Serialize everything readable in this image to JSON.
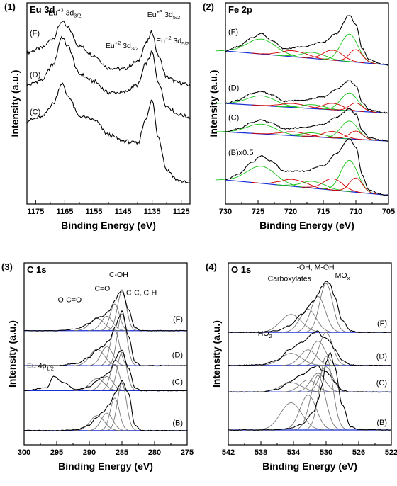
{
  "figure": {
    "panels": [
      {
        "number": "(1)",
        "title": "Eu 3d",
        "xlabel": "Binding Energy (eV)",
        "ylabel": "Intensity (a.u.)",
        "xticks": [
          "1175",
          "1165",
          "1155",
          "1145",
          "1135",
          "1125"
        ],
        "traces": [
          "(F)",
          "(D)",
          "(C)"
        ],
        "annotations": [
          {
            "base": "Eu",
            "sup": "+3",
            "rest": " 3d",
            "sub": "3/2"
          },
          {
            "base": "Eu",
            "sup": "+2",
            "rest": " 3d",
            "sub": "3/2"
          },
          {
            "base": "Eu",
            "sup": "+3",
            "rest": " 3d",
            "sub": "5/2"
          },
          {
            "base": "Eu",
            "sup": "+2",
            "rest": " 3d",
            "sub": "5/2"
          }
        ]
      },
      {
        "number": "(2)",
        "title": "Fe 2p",
        "xlabel": "Binding Energy (eV)",
        "ylabel": "Intensity (a.u.)",
        "xticks": [
          "730",
          "725",
          "720",
          "715",
          "710",
          "705"
        ],
        "traces": [
          "(F)",
          "(D)",
          "(C)",
          "(B)x0.5"
        ],
        "annotations": []
      },
      {
        "number": "(3)",
        "title": "C 1s",
        "xlabel": "Binding Energy (eV)",
        "ylabel": "Intensity (a.u.)",
        "xticks": [
          "300",
          "295",
          "290",
          "285",
          "280",
          "275"
        ],
        "traces": [
          "(F)",
          "(D)",
          "(C)",
          "(B)"
        ],
        "annotations": [
          {
            "text": "O-C=O"
          },
          {
            "text": "C=O"
          },
          {
            "text": "C-OH"
          },
          {
            "text": "C-C, C-H"
          },
          {
            "base": "Eu 4p",
            "sup": "",
            "rest": "",
            "sub": "1/2"
          }
        ]
      },
      {
        "number": "(4)",
        "title": "O 1s",
        "xlabel": "Binding Energy (eV)",
        "ylabel": "Intensity (a.u.)",
        "xticks": [
          "542",
          "538",
          "534",
          "530",
          "526",
          "522"
        ],
        "traces": [
          "(F)",
          "(D)",
          "(C)",
          "(B)"
        ],
        "annotations": [
          {
            "text": "Carboxylates"
          },
          {
            "text": "-OH, M-OH"
          },
          {
            "base": "MO",
            "sup": "",
            "rest": "",
            "sub": "x"
          },
          {
            "base": "H",
            "sup": "",
            "rest": "O",
            "sub": "2"
          }
        ]
      }
    ]
  },
  "chart_data": [
    {
      "type": "line",
      "title": "Eu 3d",
      "xlabel": "Binding Energy (eV)",
      "ylabel": "Intensity (a.u.)",
      "xlim": [
        1178,
        1122
      ],
      "xdir": "reversed",
      "series": [
        {
          "name": "(F)",
          "x": [
            1178,
            1173,
            1169,
            1166,
            1164,
            1160,
            1155,
            1150,
            1145,
            1140,
            1137,
            1135,
            1133,
            1130,
            1126,
            1122
          ],
          "y": [
            2.45,
            2.52,
            2.68,
            2.95,
            2.85,
            2.55,
            2.4,
            2.2,
            2.18,
            2.3,
            2.6,
            2.78,
            2.4,
            2.05,
            1.96,
            1.92
          ]
        },
        {
          "name": "(D)",
          "x": [
            1178,
            1173,
            1169,
            1166,
            1164,
            1160,
            1155,
            1150,
            1145,
            1140,
            1137,
            1135,
            1133,
            1130,
            1126,
            1122
          ],
          "y": [
            1.92,
            2.0,
            2.25,
            2.7,
            2.55,
            2.1,
            1.98,
            1.8,
            1.8,
            1.92,
            2.28,
            2.45,
            1.98,
            1.58,
            1.45,
            1.4
          ]
        },
        {
          "name": "(C)",
          "x": [
            1178,
            1173,
            1169,
            1166,
            1164,
            1160,
            1155,
            1150,
            1145,
            1140,
            1137,
            1135,
            1133,
            1130,
            1126,
            1122
          ],
          "y": [
            1.35,
            1.4,
            1.62,
            1.95,
            1.75,
            1.42,
            1.36,
            1.12,
            1.02,
            0.98,
            1.4,
            1.68,
            1.1,
            0.55,
            0.38,
            0.33
          ]
        }
      ]
    },
    {
      "type": "line",
      "title": "Fe 2p",
      "xlabel": "Binding Energy (eV)",
      "ylabel": "Intensity (a.u.)",
      "xlim": [
        730,
        705
      ],
      "xdir": "reversed",
      "series": [
        {
          "name": "(F)",
          "x": [
            730,
            728,
            726,
            724.5,
            723,
            721,
            718,
            715,
            713,
            711,
            710,
            709,
            708,
            706,
            705
          ],
          "y": [
            3.3,
            3.4,
            3.6,
            3.7,
            3.55,
            3.35,
            3.4,
            3.5,
            3.7,
            4.12,
            3.9,
            3.35,
            3.1,
            3.0,
            2.98
          ]
        },
        {
          "name": "(D)",
          "x": [
            730,
            728,
            726,
            724.5,
            723,
            721,
            718,
            715,
            713,
            711,
            710,
            709,
            708,
            706,
            705
          ],
          "y": [
            2.1,
            2.18,
            2.32,
            2.38,
            2.3,
            2.15,
            2.18,
            2.25,
            2.42,
            2.62,
            2.5,
            2.12,
            1.96,
            1.9,
            1.88
          ]
        },
        {
          "name": "(C)",
          "x": [
            730,
            728,
            726,
            724.5,
            723,
            721,
            718,
            715,
            713,
            711,
            710,
            709,
            708,
            706,
            705
          ],
          "y": [
            1.45,
            1.52,
            1.66,
            1.72,
            1.65,
            1.52,
            1.55,
            1.62,
            1.78,
            1.98,
            1.85,
            1.48,
            1.32,
            1.26,
            1.24
          ]
        },
        {
          "name": "(B)x0.5",
          "x": [
            730,
            728,
            726,
            724.5,
            723,
            721,
            718,
            715,
            713,
            711,
            710,
            709,
            708,
            706,
            705
          ],
          "y": [
            0.35,
            0.48,
            0.75,
            0.9,
            0.78,
            0.55,
            0.55,
            0.68,
            0.95,
            1.3,
            1.1,
            0.45,
            0.12,
            0.02,
            0.0
          ]
        }
      ]
    },
    {
      "type": "line",
      "title": "C 1s",
      "xlabel": "Binding Energy (eV)",
      "ylabel": "Intensity (a.u.)",
      "xlim": [
        300,
        275
      ],
      "xdir": "reversed",
      "series": [
        {
          "name": "(F)",
          "x": [
            300,
            295,
            292,
            290,
            289,
            288,
            287,
            286,
            285.5,
            285,
            284,
            283,
            282,
            278,
            275
          ],
          "y": [
            3.0,
            3.0,
            3.05,
            3.2,
            3.35,
            3.4,
            3.55,
            3.85,
            4.05,
            4.15,
            3.6,
            3.08,
            3.0,
            3.0,
            3.0
          ]
        },
        {
          "name": "(D)",
          "x": [
            300,
            295,
            292,
            290,
            289,
            288,
            287,
            286,
            285.5,
            285,
            284,
            283,
            282,
            278,
            275
          ],
          "y": [
            2.02,
            2.02,
            2.08,
            2.25,
            2.45,
            2.55,
            2.72,
            3.1,
            3.35,
            3.55,
            2.85,
            2.12,
            2.02,
            2.02,
            2.02
          ]
        },
        {
          "name": "(C)",
          "x": [
            300,
            296.5,
            295.5,
            294,
            292,
            290,
            289,
            288,
            287,
            286,
            285.5,
            285,
            284,
            283,
            282,
            278,
            275
          ],
          "y": [
            1.32,
            1.4,
            1.72,
            1.55,
            1.35,
            1.42,
            1.58,
            1.7,
            1.82,
            2.18,
            2.4,
            2.45,
            1.95,
            1.4,
            1.32,
            1.32,
            1.32
          ]
        },
        {
          "name": "(B)",
          "x": [
            300,
            295,
            292,
            290,
            289,
            288,
            287,
            286,
            285.5,
            285,
            284,
            283,
            282,
            278,
            275
          ],
          "y": [
            0.2,
            0.2,
            0.22,
            0.35,
            0.55,
            0.7,
            0.92,
            1.25,
            1.45,
            1.6,
            1.25,
            0.35,
            0.2,
            0.2,
            0.2
          ]
        }
      ]
    },
    {
      "type": "line",
      "title": "O 1s",
      "xlabel": "Binding Energy (eV)",
      "ylabel": "Intensity (a.u.)",
      "xlim": [
        542,
        522
      ],
      "xdir": "reversed",
      "series": [
        {
          "name": "(F)",
          "x": [
            542,
            538,
            536,
            534.5,
            533,
            531.5,
            531,
            530.5,
            530,
            529.5,
            529,
            528,
            527,
            526,
            522
          ],
          "y": [
            3.0,
            3.0,
            3.05,
            3.2,
            3.55,
            3.95,
            4.15,
            4.4,
            4.55,
            4.45,
            4.1,
            3.35,
            3.05,
            3.0,
            3.0
          ]
        },
        {
          "name": "(D)",
          "x": [
            542,
            538,
            536,
            534.5,
            533,
            531.5,
            531,
            530.5,
            530,
            529.5,
            529,
            528,
            527,
            526,
            522
          ],
          "y": [
            2.0,
            2.02,
            2.15,
            2.48,
            2.7,
            2.98,
            3.05,
            2.88,
            2.82,
            2.72,
            2.5,
            2.15,
            2.02,
            2.0,
            2.0
          ]
        },
        {
          "name": "(C)",
          "x": [
            542,
            538,
            536,
            534.5,
            533,
            531.5,
            531,
            530.5,
            530,
            529.5,
            529,
            528,
            527,
            526,
            522
          ],
          "y": [
            1.2,
            1.2,
            1.28,
            1.5,
            1.72,
            1.95,
            2.0,
            1.85,
            1.82,
            1.7,
            1.5,
            1.25,
            1.2,
            1.2,
            1.2
          ]
        },
        {
          "name": "(B)",
          "x": [
            542,
            538,
            536,
            534.5,
            533,
            531.5,
            531,
            530.5,
            530,
            529.5,
            529,
            528,
            527,
            526,
            522
          ],
          "y": [
            0.05,
            0.05,
            0.06,
            0.1,
            0.22,
            0.6,
            0.95,
            1.4,
            2.1,
            2.4,
            2.0,
            0.8,
            0.15,
            0.06,
            0.05
          ]
        }
      ]
    }
  ]
}
